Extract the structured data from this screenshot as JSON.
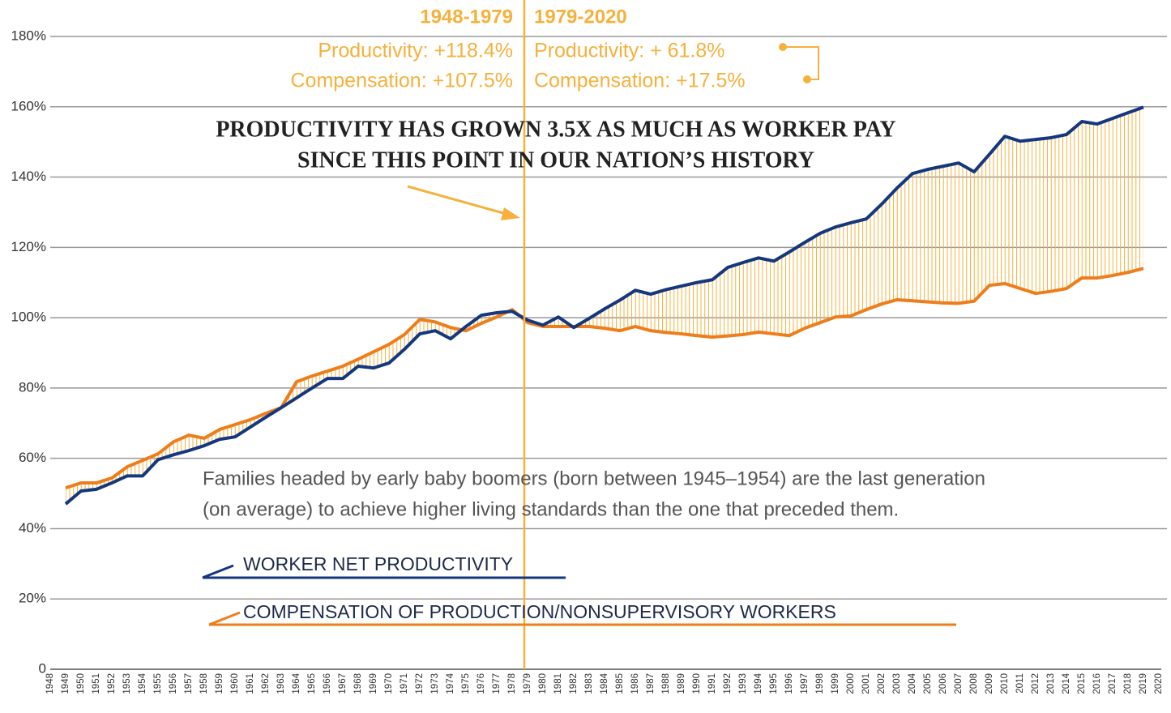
{
  "chart_data": {
    "type": "line",
    "categories": [
      "1948",
      "1949",
      "1950",
      "1951",
      "1952",
      "1953",
      "1954",
      "1955",
      "1956",
      "1957",
      "1958",
      "1959",
      "1960",
      "1961",
      "1962",
      "1963",
      "1964",
      "1965",
      "1966",
      "1967",
      "1968",
      "1969",
      "1970",
      "1971",
      "1972",
      "1973",
      "1974",
      "1975",
      "1976",
      "1977",
      "1978",
      "1979",
      "1980",
      "1981",
      "1982",
      "1983",
      "1984",
      "1985",
      "1986",
      "1987",
      "1988",
      "1989",
      "1990",
      "1991",
      "1992",
      "1993",
      "1994",
      "1995",
      "1996",
      "1997",
      "1998",
      "1999",
      "2000",
      "2001",
      "2002",
      "2003",
      "2004",
      "2005",
      "2006",
      "2007",
      "2008",
      "2009",
      "2010",
      "2011",
      "2012",
      "2013",
      "2014",
      "2015",
      "2016",
      "2017",
      "2018",
      "2019",
      "2020"
    ],
    "series": [
      {
        "name": "WORKER NET PRODUCTIVITY",
        "color": "#14377d",
        "values": [
          null,
          47.0,
          50.7,
          51.2,
          53.0,
          55.0,
          55.0,
          59.6,
          61.0,
          62.2,
          63.6,
          65.4,
          66.1,
          68.9,
          71.7,
          74.4,
          77.2,
          80.0,
          82.7,
          82.7,
          86.2,
          85.7,
          87.1,
          91.0,
          95.4,
          96.3,
          94.0,
          97.5,
          100.7,
          101.4,
          101.8,
          99.3,
          97.9,
          100.2,
          97.2,
          99.8,
          102.5,
          105.0,
          107.8,
          106.7,
          108.0,
          109.0,
          110.0,
          110.8,
          114.3,
          115.7,
          117.0,
          116.1,
          118.7,
          121.4,
          124.0,
          125.8,
          127.0,
          128.1,
          132.3,
          136.9,
          141.0,
          142.2,
          143.1,
          144.0,
          141.5,
          146.5,
          151.6,
          150.2,
          150.7,
          151.2,
          152.1,
          155.8,
          155.1,
          156.7,
          158.3,
          159.9,
          null
        ]
      },
      {
        "name": "COMPENSATION OF PRODUCTION/NONSUPERVISORY WORKERS",
        "color": "#ee7d1b",
        "values": [
          null,
          51.6,
          53.0,
          53.0,
          54.4,
          57.6,
          59.4,
          61.3,
          64.7,
          66.6,
          65.7,
          68.2,
          69.6,
          71.0,
          72.8,
          74.4,
          81.8,
          83.4,
          84.8,
          86.2,
          88.2,
          90.3,
          92.4,
          95.2,
          99.5,
          98.8,
          97.2,
          96.3,
          98.4,
          100.2,
          102.3,
          98.6,
          97.5,
          97.5,
          97.5,
          97.5,
          97.0,
          96.3,
          97.5,
          96.3,
          95.8,
          95.4,
          94.9,
          94.5,
          94.8,
          95.2,
          95.9,
          95.4,
          94.9,
          97.0,
          98.6,
          100.2,
          100.5,
          102.3,
          103.9,
          105.1,
          104.8,
          104.5,
          104.2,
          104.1,
          104.7,
          109.2,
          109.7,
          108.3,
          106.9,
          107.5,
          108.3,
          111.3,
          111.3,
          112.0,
          112.9,
          114.0,
          null
        ]
      }
    ],
    "ylim": [
      0,
      180
    ],
    "yticks": [
      0,
      {
        "value": 20,
        "label": "20%"
      },
      {
        "value": 40,
        "label": "40%"
      },
      {
        "value": 60,
        "label": "60%"
      },
      {
        "value": 80,
        "label": "80%"
      },
      {
        "value": 100,
        "label": "100%"
      },
      {
        "value": 120,
        "label": "120%"
      },
      {
        "value": 140,
        "label": "140%"
      },
      {
        "value": 160,
        "label": "160%"
      },
      {
        "value": 180,
        "label": "180%"
      }
    ],
    "grid": true,
    "periods": [
      {
        "label": "1948-1979",
        "productivity": "Productivity: +118.4%",
        "compensation": "Compensation: +107.5%"
      },
      {
        "label": "1979-2020",
        "productivity": "Productivity: + 61.8%",
        "compensation": "Compensation: +17.5%"
      }
    ],
    "headline": [
      "PRODUCTIVITY HAS GROWN 3.5X AS MUCH AS WORKER PAY",
      "SINCE THIS POINT IN OUR NATION’S HISTORY"
    ],
    "note": [
      "Families headed by early baby boomers (born between 1945–1954) are the last generation",
      "(on average) to achieve higher living standards than the one that preceded them."
    ]
  }
}
